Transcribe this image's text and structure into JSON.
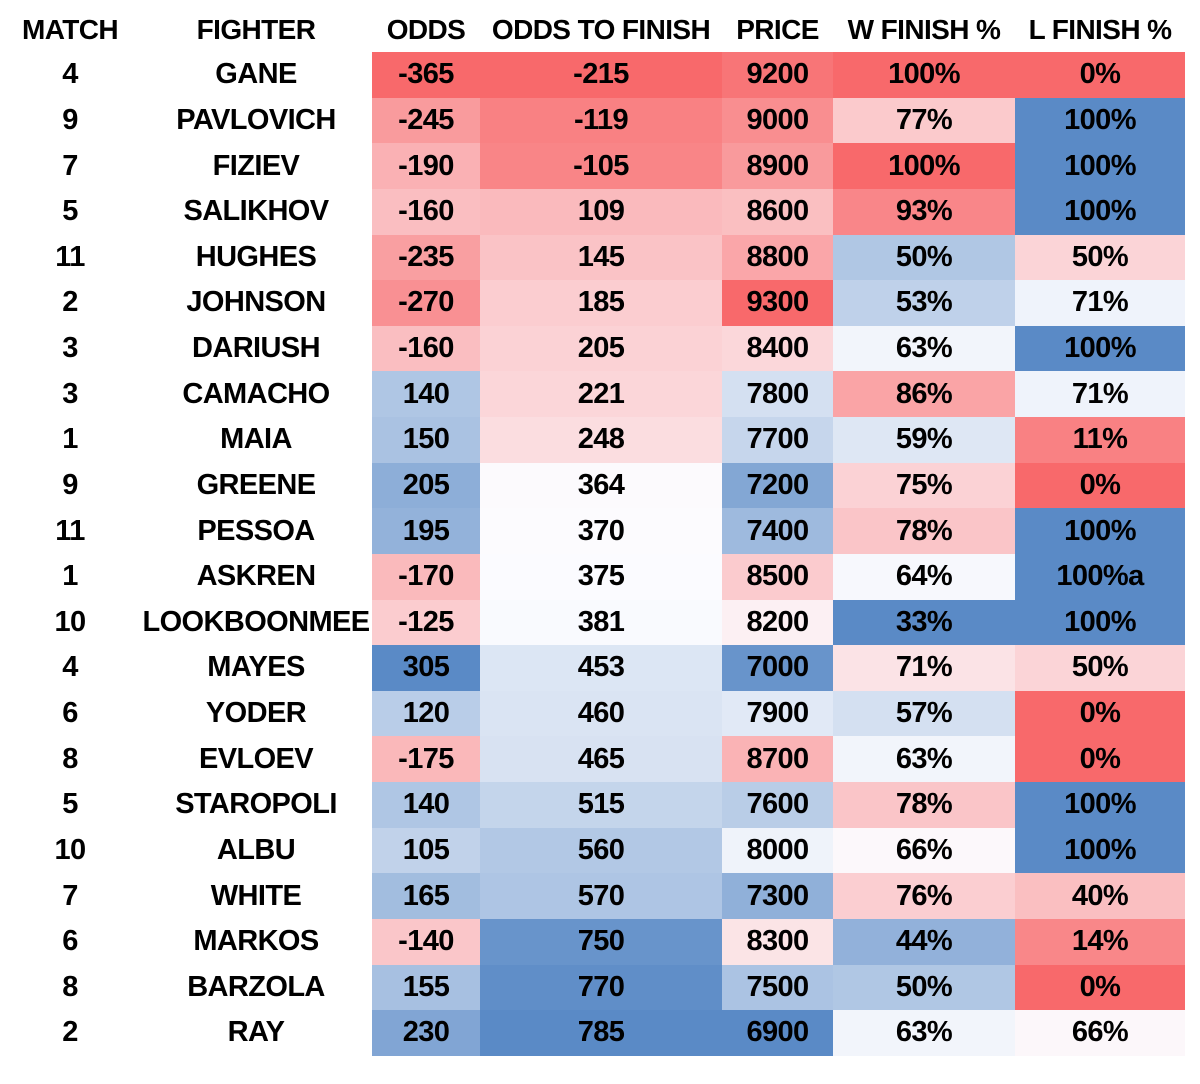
{
  "chart_data": {
    "type": "table",
    "title": "",
    "columns": [
      "MATCH",
      "FIGHTER",
      "ODDS",
      "ODDS TO FINISH",
      "PRICE",
      "W FINISH %",
      "L FINISH %"
    ],
    "rows": [
      {
        "cells": [
          "4",
          "GANE",
          "-365",
          "-215",
          "9200",
          "100%",
          "0%"
        ],
        "heat": [
          null,
          null,
          "#F8696B",
          "#F8696B",
          "#F87577",
          "#F8696B",
          "#F8696B"
        ]
      },
      {
        "cells": [
          "9",
          "PAVLOVICH",
          "-245",
          "-119",
          "9000",
          "77%",
          "100%"
        ],
        "heat": [
          null,
          null,
          "#F99B9D",
          "#F98183",
          "#F98E90",
          "#FBCACC",
          "#5A8AC6"
        ]
      },
      {
        "cells": [
          "7",
          "FIZIEV",
          "-190",
          "-105",
          "8900",
          "100%",
          "100%"
        ],
        "heat": [
          null,
          null,
          "#FAB1B4",
          "#F98587",
          "#F99A9C",
          "#F8696B",
          "#5A8AC6"
        ]
      },
      {
        "cells": [
          "5",
          "SALIKHOV",
          "-160",
          "109",
          "8600",
          "93%",
          "100%"
        ],
        "heat": [
          null,
          null,
          "#FABEC1",
          "#FABABD",
          "#FABFC1",
          "#F98689",
          "#5A8AC6"
        ]
      },
      {
        "cells": [
          "11",
          "HUGHES",
          "-235",
          "145",
          "8800",
          "50%",
          "50%"
        ],
        "heat": [
          null,
          null,
          "#F99FA1",
          "#FAC3C6",
          "#FAA6A9",
          "#B0C7E4",
          "#FBD4D7"
        ]
      },
      {
        "cells": [
          "2",
          "JOHNSON",
          "-270",
          "185",
          "9300",
          "53%",
          "71%"
        ],
        "heat": [
          null,
          null,
          "#F99093",
          "#FBCDD0",
          "#F8696B",
          "#BFD1EA",
          "#EFF3FB"
        ]
      },
      {
        "cells": [
          "3",
          "DARIUSH",
          "-160",
          "205",
          "8400",
          "63%",
          "100%"
        ],
        "heat": [
          null,
          null,
          "#FABEC1",
          "#FBD2D5",
          "#FBD7DA",
          "#F2F5FB",
          "#5A8AC6"
        ]
      },
      {
        "cells": [
          "3",
          "CAMACHO",
          "140",
          "221",
          "7800",
          "86%",
          "71%"
        ],
        "heat": [
          null,
          null,
          "#AFC6E4",
          "#FBD6D9",
          "#D4E0F1",
          "#FAA4A6",
          "#EFF3FB"
        ]
      },
      {
        "cells": [
          "1",
          "MAIA",
          "150",
          "248",
          "7700",
          "59%",
          "11%"
        ],
        "heat": [
          null,
          null,
          "#AAC2E2",
          "#FBDDE0",
          "#C6D6EC",
          "#DEE7F4",
          "#F98183"
        ]
      },
      {
        "cells": [
          "9",
          "GREENE",
          "205",
          "364",
          "7200",
          "75%",
          "0%"
        ],
        "heat": [
          null,
          null,
          "#8DAED8",
          "#FCFAFD",
          "#83A7D4",
          "#FBD2D5",
          "#F8696B"
        ]
      },
      {
        "cells": [
          "11",
          "PESSOA",
          "195",
          "370",
          "7400",
          "78%",
          "100%"
        ],
        "heat": [
          null,
          null,
          "#93B2DA",
          "#FCFBFE",
          "#9EBADE",
          "#FAC5C8",
          "#5A8AC6"
        ]
      },
      {
        "cells": [
          "1",
          "ASKREN",
          "-170",
          "375",
          "8500",
          "64%",
          "100%a"
        ],
        "heat": [
          null,
          null,
          "#FABABC",
          "#FBFBFF",
          "#FBCBCE",
          "#F7F8FD",
          "#5A8AC6"
        ]
      },
      {
        "cells": [
          "10",
          "LOOKBOONMEE",
          "-125",
          "381",
          "8200",
          "33%",
          "100%"
        ],
        "heat": [
          null,
          null,
          "#FBCCCF",
          "#F9FAFE",
          "#FCF0F3",
          "#5A8AC6",
          "#5A8AC6"
        ]
      },
      {
        "cells": [
          "4",
          "MAYES",
          "305",
          "453",
          "7000",
          "71%",
          "50%"
        ],
        "heat": [
          null,
          null,
          "#5A8AC6",
          "#DCE6F4",
          "#6894CB",
          "#FBE3E6",
          "#FBD4D7"
        ]
      },
      {
        "cells": [
          "6",
          "YODER",
          "120",
          "460",
          "7900",
          "57%",
          "0%"
        ],
        "heat": [
          null,
          null,
          "#B9CDE8",
          "#DAE4F3",
          "#E1E9F6",
          "#D4E0F1",
          "#F8696B"
        ]
      },
      {
        "cells": [
          "8",
          "EVLOEV",
          "-175",
          "465",
          "8700",
          "63%",
          "0%"
        ],
        "heat": [
          null,
          null,
          "#FAB8BA",
          "#D8E2F2",
          "#FAB3B5",
          "#F2F5FB",
          "#F8696B"
        ]
      },
      {
        "cells": [
          "5",
          "STAROPOLI",
          "140",
          "515",
          "7600",
          "78%",
          "100%"
        ],
        "heat": [
          null,
          null,
          "#AFC6E4",
          "#C4D5EB",
          "#B9CDE7",
          "#FAC5C8",
          "#5A8AC6"
        ]
      },
      {
        "cells": [
          "10",
          "ALBU",
          "105",
          "560",
          "8000",
          "66%",
          "100%"
        ],
        "heat": [
          null,
          null,
          "#C1D2EA",
          "#B2C8E5",
          "#EFF3FA",
          "#FCF8FB",
          "#5A8AC6"
        ]
      },
      {
        "cells": [
          "7",
          "WHITE",
          "165",
          "570",
          "7300",
          "76%",
          "40%"
        ],
        "heat": [
          null,
          null,
          "#A2BDDF",
          "#AEC5E4",
          "#90B0D9",
          "#FBCED1",
          "#FABFC1"
        ]
      },
      {
        "cells": [
          "6",
          "MARKOS",
          "-140",
          "750",
          "8300",
          "44%",
          "14%"
        ],
        "heat": [
          null,
          null,
          "#FAC6C9",
          "#6894CB",
          "#FBE4E6",
          "#92B1DA",
          "#F98789"
        ]
      },
      {
        "cells": [
          "8",
          "BARZOLA",
          "155",
          "770",
          "7500",
          "50%",
          "0%"
        ],
        "heat": [
          null,
          null,
          "#A7C0E1",
          "#608EC8",
          "#ABC3E3",
          "#B0C7E4",
          "#F8696B"
        ]
      },
      {
        "cells": [
          "2",
          "RAY",
          "230",
          "785",
          "6900",
          "63%",
          "66%"
        ],
        "heat": [
          null,
          null,
          "#81A5D4",
          "#5A8AC6",
          "#5A8AC6",
          "#F2F5FB",
          "#FCF7FA"
        ]
      }
    ],
    "heat_scale": {
      "red": "#F8696B",
      "mid_white": "#FCFCFF",
      "blue": "#5A8AC6",
      "red_end_by_column": {
        "ODDS": "lowest",
        "ODDS TO FINISH": "lowest",
        "PRICE": "highest",
        "W FINISH %": "highest",
        "L FINISH %": "lowest"
      }
    },
    "layout": {
      "grid": false,
      "text_color": "#000000",
      "background": "#FFFFFF"
    }
  }
}
